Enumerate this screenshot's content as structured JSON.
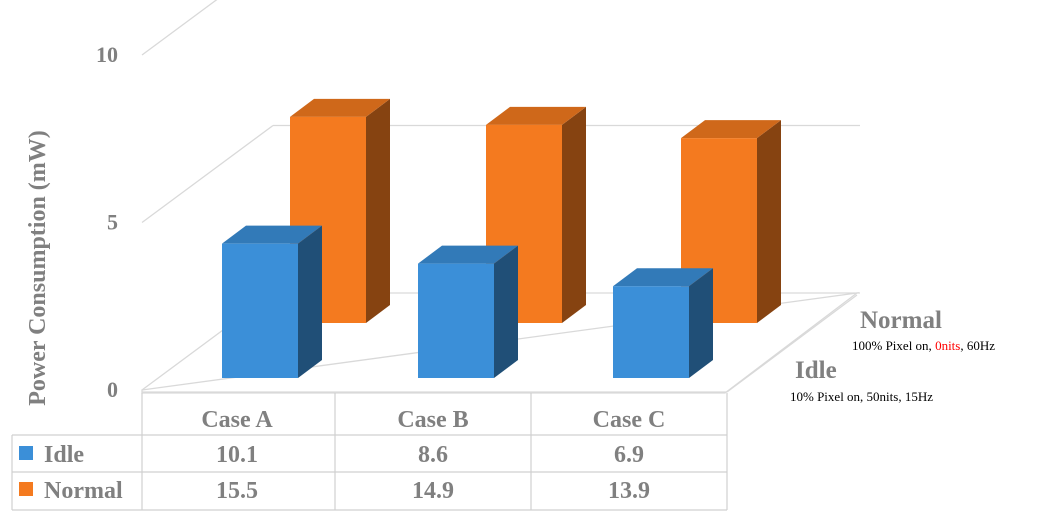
{
  "chart_data": {
    "type": "bar",
    "ylabel": "Power Consumption (mW)",
    "ylim": [
      0,
      20
    ],
    "yticks": [
      "0",
      "5",
      "10",
      "15",
      "20"
    ],
    "grid": true,
    "categories": [
      "Case A",
      "Case B",
      "Case C"
    ],
    "series": [
      {
        "name": "Idle",
        "note": "10% Pixel on, 50nits, 15Hz",
        "values": [
          10.1,
          8.6,
          6.9
        ],
        "value_labels": [
          "10.1",
          "8.6",
          "6.9"
        ],
        "color": "#3b8fd8"
      },
      {
        "name": "Normal",
        "note_parts": [
          "100% Pixel on, ",
          "0nits",
          ", 60Hz"
        ],
        "note_highlight_color": "#ff0000",
        "values": [
          15.5,
          14.9,
          13.9
        ],
        "value_labels": [
          "15.5",
          "14.9",
          "13.9"
        ],
        "color": "#f47a1f"
      }
    ]
  }
}
